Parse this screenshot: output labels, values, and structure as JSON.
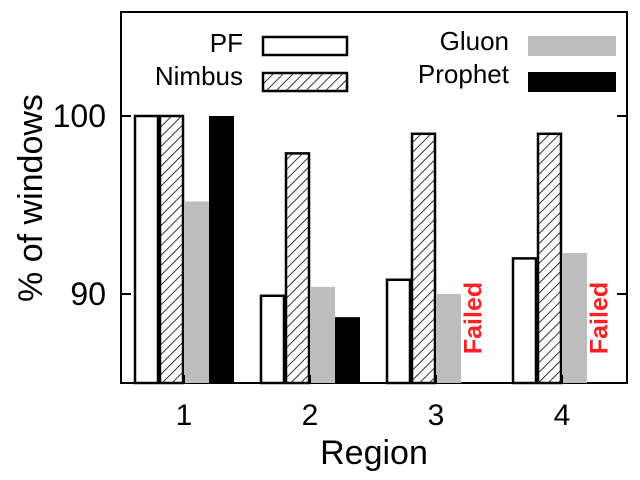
{
  "chart_data": {
    "type": "bar",
    "xlabel": "Region",
    "ylabel": "% of windows",
    "categories": [
      "1",
      "2",
      "3",
      "4"
    ],
    "yticks": [
      90,
      100
    ],
    "ylim": [
      85,
      105
    ],
    "grid": false,
    "legend_position": "top",
    "series": [
      {
        "name": "PF",
        "style": "white",
        "values": [
          100,
          89.9,
          90.8,
          92.0
        ]
      },
      {
        "name": "Nimbus",
        "style": "hatch",
        "values": [
          100,
          97.9,
          99.0,
          99.0
        ]
      },
      {
        "name": "Gluon",
        "style": "gray",
        "values": [
          95.2,
          90.4,
          90.0,
          92.3
        ]
      },
      {
        "name": "Prophet",
        "style": "black",
        "values": [
          100,
          88.7,
          null,
          null
        ]
      }
    ],
    "annotations": [
      {
        "category": "3",
        "series": "Prophet",
        "text": "Failed"
      },
      {
        "category": "4",
        "series": "Prophet",
        "text": "Failed"
      }
    ],
    "colors": {
      "white": "#ffffff",
      "gray": "#bdbdbd",
      "black": "#000000",
      "failed": "#ff2020"
    }
  }
}
